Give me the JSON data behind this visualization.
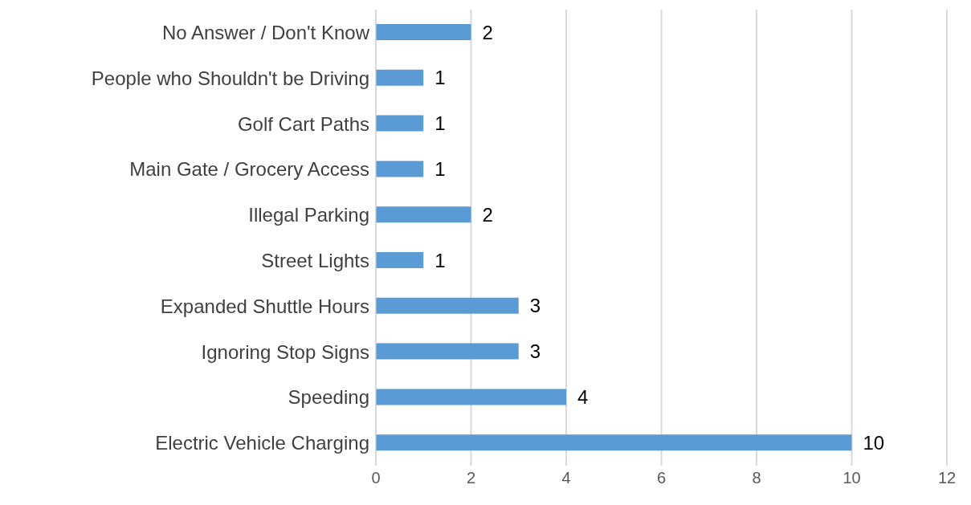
{
  "chart_data": {
    "type": "bar",
    "orientation": "horizontal",
    "categories": [
      "No Answer / Don't Know",
      "People who Shouldn't be Driving",
      "Golf Cart Paths",
      "Main Gate / Grocery Access",
      "Illegal Parking",
      "Street Lights",
      "Expanded Shuttle Hours",
      "Ignoring Stop Signs",
      "Speeding",
      "Electric Vehicle Charging"
    ],
    "values": [
      2,
      1,
      1,
      1,
      2,
      1,
      3,
      3,
      4,
      10
    ],
    "color": "#5b9bd5",
    "xlim": [
      0,
      12
    ],
    "xticks": [
      0,
      2,
      4,
      6,
      8,
      10,
      12
    ],
    "grid": "x",
    "data_labels": true
  }
}
